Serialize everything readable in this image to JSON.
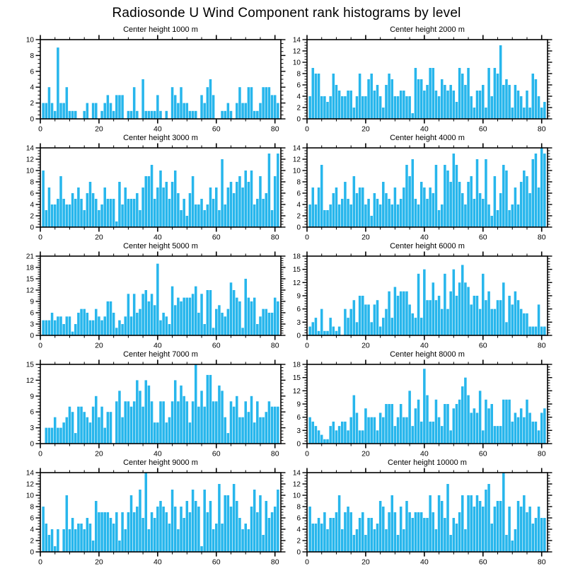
{
  "figure": {
    "title": "Radiosonde U Wind Component rank histograms by level"
  },
  "style": {
    "bar_color": "#27B6EC",
    "axis_color": "#000000"
  },
  "chart_data": [
    {
      "type": "bar",
      "title": "Center height 1000 m",
      "xlabel": "",
      "ylabel": "",
      "xlim": [
        0,
        82
      ],
      "ylim": [
        0,
        10
      ],
      "xticks": [
        0,
        20,
        40,
        60,
        80
      ],
      "x_minor_step": 5,
      "yticks": [
        0,
        2,
        4,
        6,
        8,
        10
      ],
      "x_bins": 81,
      "x_first_rank": 1,
      "grid": false,
      "legend": "none",
      "values": [
        2,
        2,
        4,
        2,
        1,
        9,
        2,
        2,
        4,
        1,
        1,
        1,
        0,
        0,
        1,
        2,
        0,
        2,
        2,
        0,
        1,
        2,
        3,
        2,
        1,
        3,
        3,
        3,
        0,
        1,
        1,
        4,
        1,
        0,
        5,
        1,
        1,
        1,
        1,
        3,
        1,
        0,
        1,
        0,
        4,
        3,
        2,
        4,
        2,
        2,
        1,
        1,
        1,
        0,
        3,
        2,
        4,
        5,
        3,
        0,
        0,
        1,
        1,
        2,
        1,
        0,
        2,
        4,
        2,
        2,
        4,
        4,
        1,
        1,
        2,
        4,
        4,
        4,
        3,
        3,
        2
      ]
    },
    {
      "type": "bar",
      "title": "Center height 2000 m",
      "xlabel": "",
      "ylabel": "",
      "xlim": [
        0,
        82
      ],
      "ylim": [
        0,
        14
      ],
      "xticks": [
        0,
        20,
        40,
        60,
        80
      ],
      "x_minor_step": 5,
      "yticks": [
        0,
        2,
        4,
        6,
        8,
        10,
        12,
        14
      ],
      "x_bins": 81,
      "x_first_rank": 1,
      "grid": false,
      "legend": "none",
      "values": [
        4,
        9,
        8,
        8,
        4,
        4,
        3,
        4,
        8,
        6,
        5,
        4,
        4,
        5,
        5,
        2,
        4,
        8,
        4,
        4,
        7,
        8,
        5,
        6,
        4,
        2,
        6,
        8,
        7,
        4,
        4,
        5,
        5,
        4,
        4,
        1,
        9,
        7,
        7,
        5,
        6,
        9,
        9,
        5,
        4,
        7,
        6,
        5,
        6,
        5,
        3,
        9,
        8,
        6,
        9,
        4,
        2,
        5,
        5,
        6,
        2,
        9,
        4,
        9,
        8,
        13,
        6,
        7,
        6,
        2,
        6,
        5,
        4,
        2,
        5,
        2,
        8,
        7,
        4,
        2,
        3
      ]
    },
    {
      "type": "bar",
      "title": "Center height 3000 m",
      "xlabel": "",
      "ylabel": "",
      "xlim": [
        0,
        82
      ],
      "ylim": [
        0,
        14
      ],
      "xticks": [
        0,
        20,
        40,
        60,
        80
      ],
      "x_minor_step": 5,
      "yticks": [
        0,
        2,
        4,
        6,
        8,
        10,
        12,
        14
      ],
      "x_bins": 81,
      "x_first_rank": 1,
      "grid": false,
      "legend": "none",
      "values": [
        10,
        3,
        7,
        4,
        4,
        5,
        9,
        5,
        4,
        4,
        6,
        5,
        7,
        5,
        3,
        6,
        8,
        6,
        5,
        3,
        4,
        7,
        5,
        5,
        5,
        1,
        8,
        4,
        7,
        5,
        5,
        5,
        6,
        3,
        7,
        9,
        9,
        11,
        5,
        7,
        10,
        7,
        8,
        5,
        8,
        10,
        6,
        3,
        5,
        2,
        6,
        9,
        4,
        4,
        5,
        3,
        4,
        7,
        5,
        7,
        3,
        12,
        4,
        7,
        8,
        6,
        8,
        9,
        7,
        10,
        8,
        10,
        4,
        5,
        9,
        5,
        6,
        13,
        3,
        9,
        13
      ]
    },
    {
      "type": "bar",
      "title": "Center height 4000 m",
      "xlabel": "",
      "ylabel": "",
      "xlim": [
        0,
        82
      ],
      "ylim": [
        0,
        14
      ],
      "xticks": [
        0,
        20,
        40,
        60,
        80
      ],
      "x_minor_step": 5,
      "yticks": [
        0,
        2,
        4,
        6,
        8,
        10,
        12,
        14
      ],
      "x_bins": 81,
      "x_first_rank": 1,
      "grid": false,
      "legend": "none",
      "values": [
        4,
        7,
        4,
        7,
        11,
        3,
        3,
        4,
        6,
        7,
        4,
        5,
        8,
        5,
        4,
        9,
        6,
        7,
        7,
        4,
        5,
        2,
        6,
        5,
        4,
        8,
        6,
        5,
        4,
        7,
        4,
        5,
        7,
        11,
        9,
        12,
        5,
        4,
        8,
        7,
        5,
        7,
        6,
        11,
        3,
        4,
        11,
        10,
        8,
        13,
        11,
        8,
        6,
        4,
        8,
        9,
        5,
        12,
        6,
        5,
        12,
        4,
        2,
        9,
        3,
        6,
        11,
        10,
        3,
        4,
        7,
        4,
        8,
        10,
        9,
        6,
        12,
        13,
        7,
        14,
        13
      ]
    },
    {
      "type": "bar",
      "title": "Center height 5000 m",
      "xlabel": "",
      "ylabel": "",
      "xlim": [
        0,
        82
      ],
      "ylim": [
        0,
        21
      ],
      "xticks": [
        0,
        20,
        40,
        60,
        80
      ],
      "x_minor_step": 5,
      "yticks": [
        0,
        3,
        6,
        9,
        12,
        15,
        18,
        21
      ],
      "x_bins": 81,
      "x_first_rank": 1,
      "grid": false,
      "legend": "none",
      "values": [
        4,
        4,
        4,
        6,
        4,
        5,
        5,
        3,
        5,
        5,
        1,
        3,
        6,
        7,
        7,
        6,
        4,
        4,
        7,
        5,
        4,
        5,
        9,
        9,
        6,
        2,
        4,
        3,
        5,
        11,
        5,
        11,
        6,
        7,
        11,
        12,
        9,
        11,
        8,
        19,
        4,
        6,
        5,
        3,
        13,
        8,
        10,
        9,
        10,
        10,
        10,
        11,
        13,
        6,
        11,
        3,
        12,
        12,
        2,
        7,
        8,
        6,
        5,
        7,
        14,
        12,
        10,
        9,
        2,
        15,
        10,
        9,
        10,
        3,
        5,
        7,
        7,
        6,
        6,
        10,
        9
      ]
    },
    {
      "type": "bar",
      "title": "Center height 6000 m",
      "xlabel": "",
      "ylabel": "",
      "xlim": [
        0,
        82
      ],
      "ylim": [
        0,
        18
      ],
      "xticks": [
        0,
        20,
        40,
        60,
        80
      ],
      "x_minor_step": 5,
      "yticks": [
        0,
        3,
        6,
        9,
        12,
        15,
        18
      ],
      "x_bins": 81,
      "x_first_rank": 1,
      "grid": false,
      "legend": "none",
      "values": [
        2,
        3,
        4,
        1,
        6,
        1,
        1,
        4,
        2,
        1,
        2,
        0,
        6,
        4,
        6,
        8,
        3,
        9,
        9,
        7,
        7,
        3,
        7,
        8,
        2,
        4,
        6,
        10,
        4,
        11,
        9,
        10,
        10,
        10,
        7,
        5,
        4,
        14,
        4,
        15,
        8,
        8,
        12,
        8,
        9,
        6,
        14,
        6,
        10,
        15,
        9,
        12,
        16,
        12,
        11,
        7,
        9,
        9,
        6,
        14,
        8,
        10,
        6,
        6,
        8,
        8,
        12,
        3,
        9,
        7,
        10,
        8,
        6,
        5,
        5,
        2,
        2,
        2,
        7,
        2,
        2
      ]
    },
    {
      "type": "bar",
      "title": "Center height 7000 m",
      "xlabel": "",
      "ylabel": "",
      "xlim": [
        0,
        82
      ],
      "ylim": [
        0,
        15
      ],
      "xticks": [
        0,
        20,
        40,
        60,
        80
      ],
      "x_minor_step": 5,
      "yticks": [
        0,
        3,
        6,
        9,
        12,
        15
      ],
      "x_bins": 81,
      "x_first_rank": 1,
      "grid": false,
      "legend": "none",
      "values": [
        0,
        3,
        3,
        3,
        5,
        3,
        3,
        4,
        5,
        7,
        6,
        2,
        7,
        7,
        6,
        5,
        4,
        7,
        9,
        5,
        7,
        3,
        6,
        6,
        0,
        8,
        10,
        5,
        8,
        8,
        7,
        8,
        12,
        10,
        7,
        12,
        11,
        8,
        4,
        4,
        8,
        8,
        4,
        5,
        8,
        12,
        8,
        11,
        9,
        8,
        4,
        8,
        15,
        7,
        10,
        7,
        13,
        13,
        8,
        8,
        11,
        10,
        5,
        2,
        8,
        7,
        9,
        5,
        5,
        8,
        6,
        9,
        4,
        8,
        5,
        5,
        6,
        8,
        7,
        7,
        7
      ]
    },
    {
      "type": "bar",
      "title": "Center height 8000 m",
      "xlabel": "",
      "ylabel": "",
      "xlim": [
        0,
        82
      ],
      "ylim": [
        0,
        18
      ],
      "xticks": [
        0,
        20,
        40,
        60,
        80
      ],
      "x_minor_step": 5,
      "yticks": [
        0,
        3,
        6,
        9,
        12,
        15,
        18
      ],
      "x_bins": 81,
      "x_first_rank": 1,
      "grid": false,
      "legend": "none",
      "values": [
        6,
        5,
        4,
        3,
        2,
        1,
        1,
        4,
        5,
        3,
        4,
        5,
        5,
        3,
        6,
        11,
        7,
        3,
        3,
        8,
        6,
        6,
        6,
        3,
        7,
        6,
        9,
        9,
        9,
        4,
        6,
        9,
        6,
        6,
        12,
        4,
        8,
        10,
        5,
        17,
        11,
        5,
        5,
        10,
        6,
        4,
        9,
        9,
        3,
        8,
        9,
        10,
        13,
        15,
        11,
        7,
        8,
        7,
        12,
        3,
        10,
        8,
        9,
        4,
        4,
        4,
        10,
        10,
        10,
        5,
        7,
        6,
        8,
        6,
        10,
        7,
        5,
        5,
        3,
        7,
        8
      ]
    },
    {
      "type": "bar",
      "title": "Center height 9000 m",
      "xlabel": "",
      "ylabel": "",
      "xlim": [
        0,
        82
      ],
      "ylim": [
        0,
        14
      ],
      "xticks": [
        0,
        20,
        40,
        60,
        80
      ],
      "x_minor_step": 5,
      "yticks": [
        0,
        2,
        4,
        6,
        8,
        10,
        12,
        14
      ],
      "x_bins": 81,
      "x_first_rank": 1,
      "grid": false,
      "legend": "none",
      "values": [
        8,
        5,
        3,
        4,
        1,
        4,
        0,
        4,
        10,
        4,
        6,
        4,
        5,
        5,
        4,
        6,
        5,
        2,
        9,
        7,
        7,
        7,
        7,
        6,
        5,
        7,
        2,
        7,
        4,
        7,
        10,
        7,
        8,
        11,
        6,
        14,
        4,
        7,
        6,
        8,
        9,
        8,
        7,
        5,
        11,
        8,
        4,
        8,
        6,
        9,
        7,
        11,
        9,
        8,
        1,
        11,
        7,
        9,
        4,
        5,
        12,
        5,
        10,
        10,
        8,
        12,
        9,
        6,
        4,
        5,
        4,
        8,
        11,
        7,
        10,
        3,
        9,
        6,
        7,
        8,
        11
      ]
    },
    {
      "type": "bar",
      "title": "Center height 10000 m",
      "xlabel": "",
      "ylabel": "",
      "xlim": [
        0,
        82
      ],
      "ylim": [
        0,
        14
      ],
      "xticks": [
        0,
        20,
        40,
        60,
        80
      ],
      "x_minor_step": 5,
      "yticks": [
        0,
        2,
        4,
        6,
        8,
        10,
        12,
        14
      ],
      "x_bins": 81,
      "x_first_rank": 1,
      "grid": false,
      "legend": "none",
      "values": [
        8,
        5,
        5,
        6,
        5,
        7,
        4,
        6,
        6,
        7,
        10,
        4,
        7,
        8,
        7,
        3,
        4,
        6,
        7,
        3,
        6,
        6,
        4,
        5,
        9,
        8,
        4,
        7,
        10,
        7,
        3,
        8,
        4,
        9,
        7,
        6,
        7,
        7,
        7,
        6,
        6,
        10,
        7,
        4,
        10,
        9,
        6,
        12,
        3,
        6,
        5,
        7,
        10,
        4,
        10,
        10,
        8,
        10,
        9,
        8,
        11,
        12,
        5,
        8,
        9,
        9,
        14,
        3,
        8,
        2,
        4,
        9,
        8,
        10,
        7,
        8,
        5,
        6,
        8,
        6,
        6
      ]
    }
  ]
}
